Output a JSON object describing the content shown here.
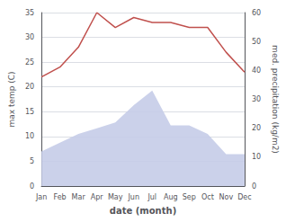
{
  "chart_data": {
    "type": "line",
    "categories": [
      "Jan",
      "Feb",
      "Mar",
      "Apr",
      "May",
      "Jun",
      "Jul",
      "Aug",
      "Sep",
      "Oct",
      "Nov",
      "Dec"
    ],
    "series": [
      {
        "type": "area",
        "axis": "y2",
        "color": "#c5cce8",
        "values": [
          12,
          15,
          18,
          20,
          22,
          28,
          33,
          21,
          21,
          18,
          11,
          11
        ]
      },
      {
        "type": "line",
        "color": "#c0504d",
        "values": [
          22,
          24,
          28,
          35,
          32,
          34,
          33,
          33,
          32,
          32,
          27,
          23
        ]
      }
    ],
    "xlabel": "date (month)",
    "ylabel": "max temp (C)",
    "y2label": "med. precipitation (kg/m2)",
    "ylim": [
      0,
      35
    ],
    "yticks": [
      0,
      5,
      10,
      15,
      20,
      25,
      30,
      35
    ],
    "y2lim": [
      0,
      60
    ],
    "y2ticks": [
      0,
      10,
      20,
      30,
      40,
      50,
      60
    ],
    "grid": true
  }
}
